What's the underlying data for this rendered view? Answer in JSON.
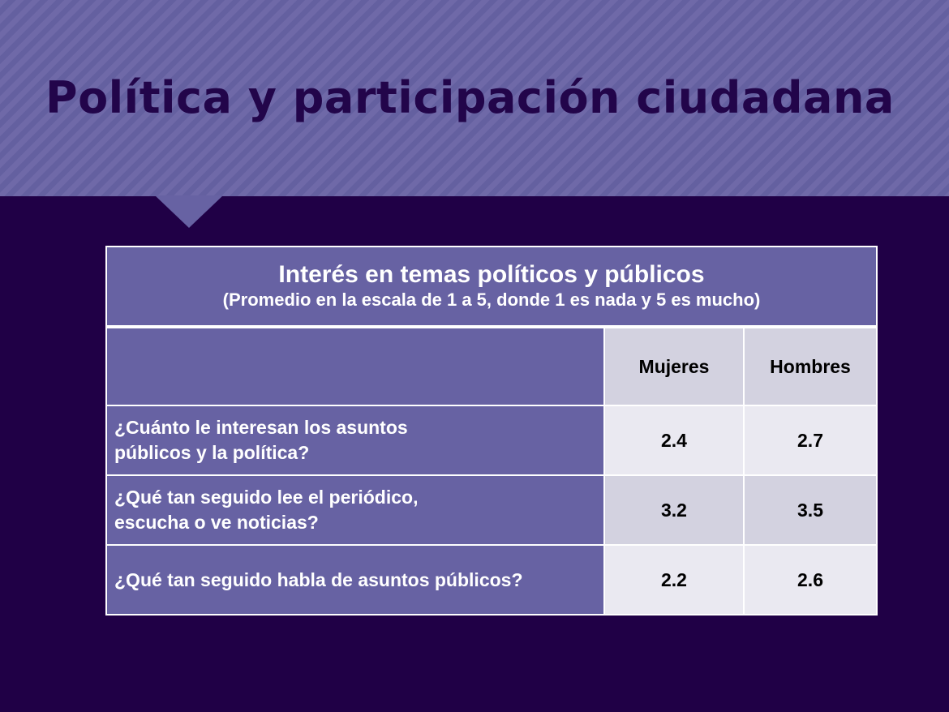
{
  "slide": {
    "title": "Política y participación ciudadana"
  },
  "table": {
    "title": "Interés en temas políticos y públicos",
    "subtitle": "(Promedio en la escala de 1 a 5, donde 1 es nada y 5 es mucho)",
    "columns": [
      "",
      "Mujeres",
      "Hombres"
    ],
    "rows": [
      {
        "question_line1": "¿Cuánto le interesan los asuntos",
        "question_line2": "públicos y la política?",
        "mujeres": "2.4",
        "hombres": "2.7"
      },
      {
        "question_line1": "¿Qué tan seguido lee el periódico,",
        "question_line2": "escucha o ve noticias?",
        "mujeres": "3.2",
        "hombres": "3.5"
      },
      {
        "question_line1": "¿Qué tan seguido habla de asuntos públicos?",
        "question_line2": "",
        "mujeres": "2.2",
        "hombres": "2.6"
      }
    ]
  },
  "colors": {
    "background": "#200046",
    "header_band": "#6a64a2",
    "title_text": "#22054a",
    "table_purple": "#6762a3",
    "cell_light": "#eae9f1",
    "cell_dark": "#d3d2e0"
  }
}
